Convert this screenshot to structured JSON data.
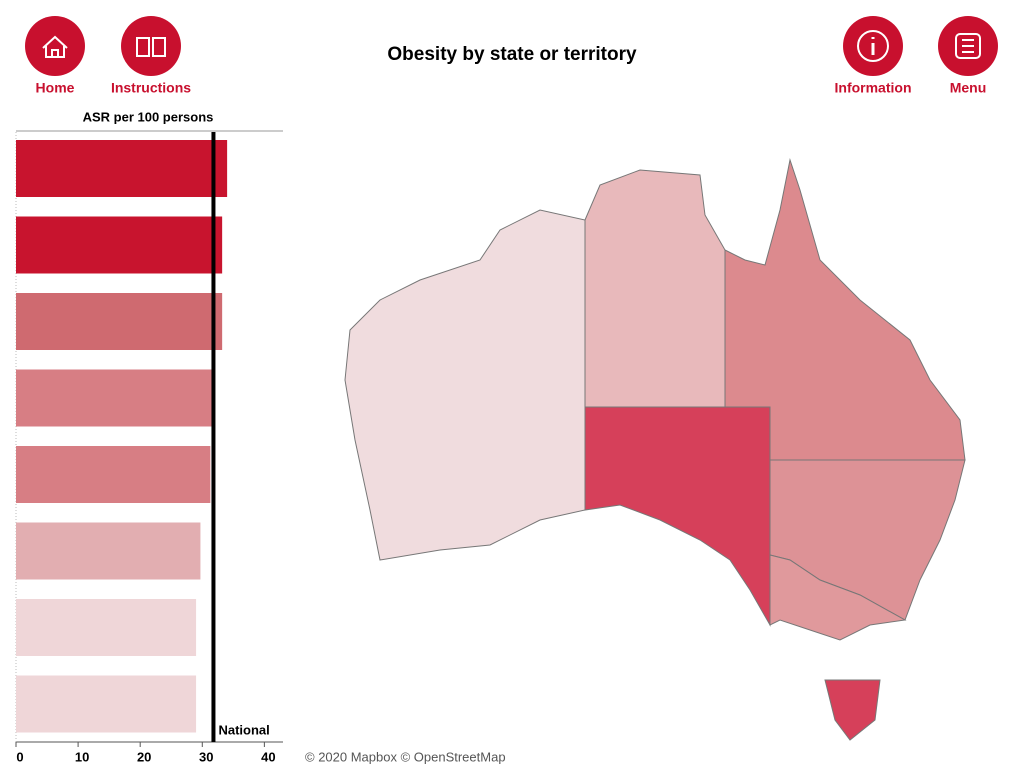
{
  "header": {
    "title": "Obesity by state or territory",
    "nav": [
      "Home",
      "Instructions",
      "Information",
      "Menu"
    ]
  },
  "chart_data": {
    "type": "bar",
    "orientation": "horizontal",
    "x_label": "ASR per 100 persons",
    "values": [
      34.0,
      33.2,
      33.2,
      31.6,
      31.3,
      29.7,
      29.0,
      29.0
    ],
    "colors": [
      "#c8142e",
      "#c8142e",
      "#cf6a70",
      "#d77e84",
      "#d77e84",
      "#e2aeb1",
      "#efd6d8",
      "#efd6d8"
    ],
    "xlim": [
      0,
      43
    ],
    "xticks": [
      0,
      10,
      20,
      30,
      40
    ],
    "reference": {
      "label": "National",
      "value": 31.8
    }
  },
  "map": {
    "attribution": "© 2020 Mapbox © OpenStreetMap"
  }
}
